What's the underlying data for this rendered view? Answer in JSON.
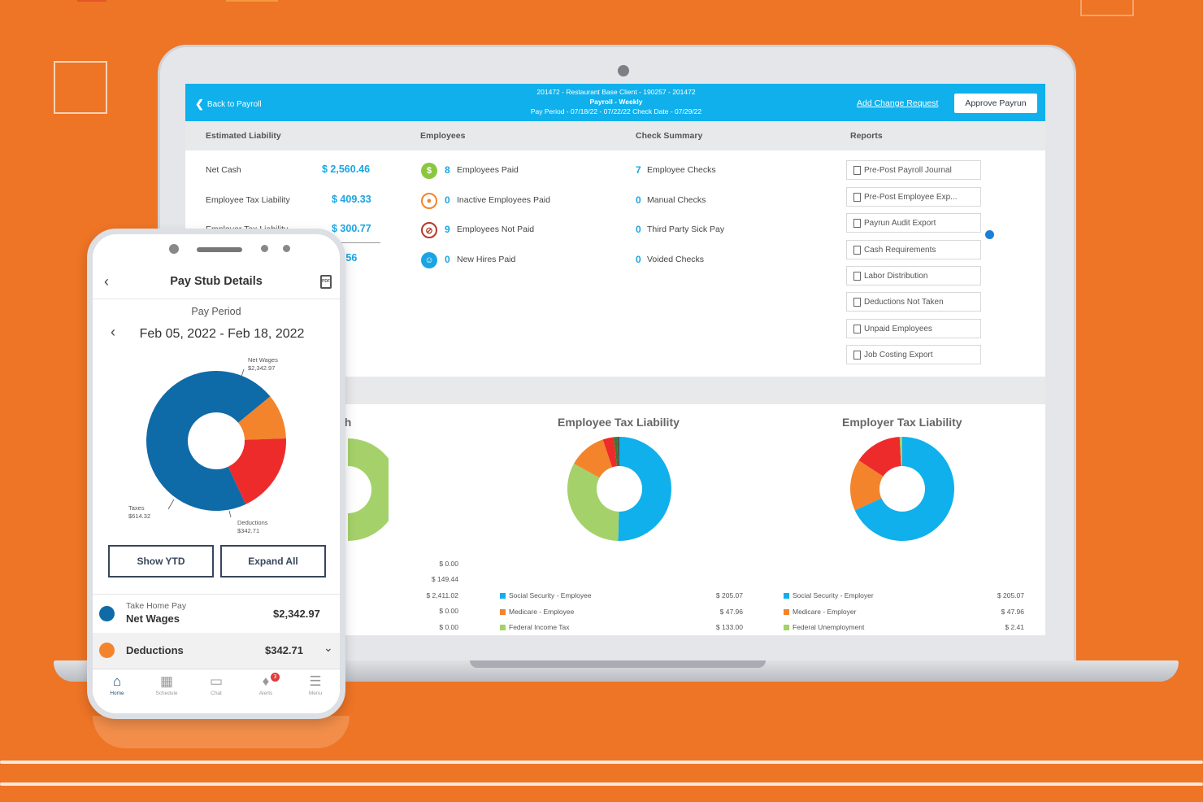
{
  "colors": {
    "background": "#ee7426",
    "topbar": "#0fb0ec",
    "accent_blue": "#1aa5e2",
    "green": "#a5d16a",
    "navy": "#0f6aa8",
    "red": "#ee2b2b",
    "orange": "#f3842c"
  },
  "laptop": {
    "topbar": {
      "back_label": "Back to Payroll",
      "client_line": "201472 - Restaurant Base Client - 190257 - 201472",
      "payroll_line": "Payroll - Weekly",
      "period_line": "Pay Period - 07/18/22 - 07/22/22   Check Date - 07/29/22",
      "change_request_label": "Add Change Request",
      "approve_label": "Approve Payrun"
    },
    "columns": {
      "liability": "Estimated Liability",
      "employees": "Employees",
      "check_summary": "Check Summary",
      "reports": "Reports"
    },
    "liability": [
      {
        "label": "Net Cash",
        "value": "$ 2,560.46"
      },
      {
        "label": "Employee Tax Liability",
        "value": "$ 409.33"
      },
      {
        "label": "Employer Tax Liability",
        "value": "$ 300.77"
      },
      {
        "label": "",
        "value": "70.56"
      }
    ],
    "employees": [
      {
        "icon": "dollar-icon",
        "count": "8",
        "label": "Employees Paid"
      },
      {
        "icon": "inactive-icon",
        "count": "0",
        "label": "Inactive Employees Paid"
      },
      {
        "icon": "not-paid-icon",
        "count": "9",
        "label": "Employees Not Paid"
      },
      {
        "icon": "new-hire-icon",
        "count": "0",
        "label": "New Hires Paid"
      }
    ],
    "checks": [
      {
        "count": "7",
        "label": "Employee Checks"
      },
      {
        "count": "0",
        "label": "Manual Checks"
      },
      {
        "count": "0",
        "label": "Third Party Sick Pay"
      },
      {
        "count": "0",
        "label": "Voided Checks"
      }
    ],
    "reports": [
      "Pre-Post Payroll Journal",
      "Pre-Post Employee Exp...",
      "Payrun Audit Export",
      "Cash Requirements",
      "Labor Distribution",
      "Deductions Not Taken",
      "Unpaid Employees",
      "Job Costing Export"
    ],
    "net_cash_chart": {
      "title_fragment": "sh",
      "amounts": [
        "$ 0.00",
        "$ 149.44",
        "$ 2,411.02",
        "$ 0.00",
        "$ 0.00"
      ]
    }
  },
  "chart_data": [
    {
      "type": "pie",
      "title": "Employee Tax Liability",
      "slices": [
        {
          "name": "Social Security - Employee",
          "value": 205.07,
          "color": "#0fb0ec"
        },
        {
          "name": "Federal Income Tax",
          "value": 133.0,
          "color": "#a5d16a"
        },
        {
          "name": "Medicare - Employee",
          "value": 47.96,
          "color": "#f3842c"
        },
        {
          "name": "",
          "value": 14.0,
          "color": "#ee2b2b"
        },
        {
          "name": "",
          "value": 4.0,
          "color": "#2e7d32"
        },
        {
          "name": "",
          "value": 3.0,
          "color": "#555555"
        }
      ],
      "legend": [
        {
          "name": "Social Security - Employee",
          "amount": "$ 205.07",
          "color": "#0fb0ec"
        },
        {
          "name": "Medicare - Employee",
          "amount": "$ 47.96",
          "color": "#f3842c"
        },
        {
          "name": "Federal Income Tax",
          "amount": "$ 133.00",
          "color": "#a5d16a"
        }
      ]
    },
    {
      "type": "pie",
      "title": "Employer Tax Liability",
      "slices": [
        {
          "name": "Social Security - Employer",
          "value": 205.07,
          "color": "#0fb0ec"
        },
        {
          "name": "Medicare - Employer",
          "value": 47.96,
          "color": "#f3842c"
        },
        {
          "name": "",
          "value": 45.0,
          "color": "#ee2b2b"
        },
        {
          "name": "Federal Unemployment",
          "value": 2.41,
          "color": "#a5d16a"
        }
      ],
      "legend": [
        {
          "name": "Social Security - Employer",
          "amount": "$ 205.07",
          "color": "#0fb0ec"
        },
        {
          "name": "Medicare - Employer",
          "amount": "$ 47.96",
          "color": "#f3842c"
        },
        {
          "name": "Federal Unemployment",
          "amount": "$ 2.41",
          "color": "#a5d16a"
        }
      ]
    },
    {
      "type": "pie",
      "title": "",
      "slices": [
        {
          "name": "Net Wages",
          "value": 2342.97,
          "color": "#0f6aa8"
        },
        {
          "name": "Deductions",
          "value": 342.71,
          "color": "#f3842c"
        },
        {
          "name": "Taxes",
          "value": 614.32,
          "color": "#ee2b2b"
        }
      ]
    }
  ],
  "phone": {
    "title": "Pay Stub Details",
    "pay_period_label": "Pay Period",
    "pay_period_value": "Feb 05, 2022 - Feb 18, 2022",
    "labels": {
      "net_wages_name": "Net Wages",
      "net_wages_amt": "$2,342.97",
      "taxes_name": "Taxes",
      "taxes_amt": "$614.32",
      "deductions_name": "Deductions",
      "deductions_amt": "$342.71"
    },
    "show_ytd": "Show YTD",
    "expand_all": "Expand All",
    "take_home_label": "Take Home Pay",
    "net_wages_label": "Net Wages",
    "net_wages_value": "$2,342.97",
    "deductions_label": "Deductions",
    "deductions_value": "$342.71",
    "tabs": [
      {
        "icon": "home-icon",
        "label": "Home"
      },
      {
        "icon": "calendar-icon",
        "label": "Schedule"
      },
      {
        "icon": "chat-icon",
        "label": "Chat"
      },
      {
        "icon": "bell-icon",
        "label": "Alerts",
        "badge": "3"
      },
      {
        "icon": "menu-icon",
        "label": "Menu"
      }
    ]
  }
}
